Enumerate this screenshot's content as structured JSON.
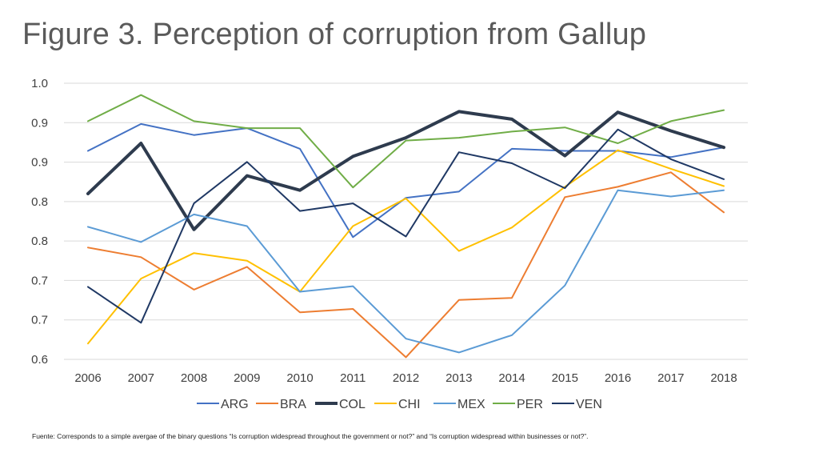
{
  "title": "Figure 3. Perception of corruption from Gallup",
  "footnote": "Fuente: Corresponds to a simple avergae of the binary questions “Is corruption widespread throughout the government or not?” and “Is corruption widespread within businesses or not?”.",
  "chart_data": {
    "type": "line",
    "title": "Figure 3. Perception of corruption from Gallup",
    "x": [
      "2006",
      "2007",
      "2008",
      "2009",
      "2010",
      "2011",
      "2012",
      "2013",
      "2014",
      "2015",
      "2016",
      "2017",
      "2018"
    ],
    "y_tick_labels": [
      "1.0",
      "0.9",
      "0.9",
      "0.8",
      "0.8",
      "0.7",
      "0.7",
      "0.6"
    ],
    "ylim": [
      0.6,
      1.0
    ],
    "grid": true,
    "legend": "bottom",
    "series": [
      {
        "name": "ARG",
        "color": "#4472c4",
        "width": 2,
        "values": [
          0.902,
          0.941,
          0.925,
          0.935,
          0.905,
          0.777,
          0.834,
          0.843,
          0.905,
          0.902,
          0.902,
          0.893,
          0.907
        ]
      },
      {
        "name": "BRA",
        "color": "#ed7d31",
        "width": 2,
        "values": [
          0.762,
          0.748,
          0.701,
          0.734,
          0.668,
          0.673,
          0.603,
          0.686,
          0.689,
          0.835,
          0.85,
          0.871,
          0.813
        ]
      },
      {
        "name": "COL",
        "color": "#2e3b4e",
        "width": 4,
        "values": [
          0.84,
          0.913,
          0.788,
          0.866,
          0.845,
          0.894,
          0.921,
          0.959,
          0.948,
          0.895,
          0.958,
          0.931,
          0.907
        ]
      },
      {
        "name": "CHI",
        "color": "#ffc000",
        "width": 2,
        "values": [
          0.623,
          0.717,
          0.754,
          0.743,
          0.698,
          0.793,
          0.833,
          0.757,
          0.791,
          0.85,
          0.903,
          0.876,
          0.851
        ]
      },
      {
        "name": "MEX",
        "color": "#5b9bd5",
        "width": 2,
        "values": [
          0.792,
          0.77,
          0.81,
          0.793,
          0.698,
          0.706,
          0.63,
          0.61,
          0.635,
          0.707,
          0.845,
          0.836,
          0.845
        ]
      },
      {
        "name": "PER",
        "color": "#70ad47",
        "width": 2,
        "values": [
          0.945,
          0.983,
          0.945,
          0.935,
          0.935,
          0.849,
          0.917,
          0.921,
          0.93,
          0.936,
          0.913,
          0.945,
          0.961
        ]
      },
      {
        "name": "VEN",
        "color": "#1f3864",
        "width": 2,
        "values": [
          0.705,
          0.653,
          0.826,
          0.886,
          0.815,
          0.826,
          0.778,
          0.9,
          0.884,
          0.848,
          0.933,
          0.89,
          0.861
        ]
      }
    ]
  }
}
